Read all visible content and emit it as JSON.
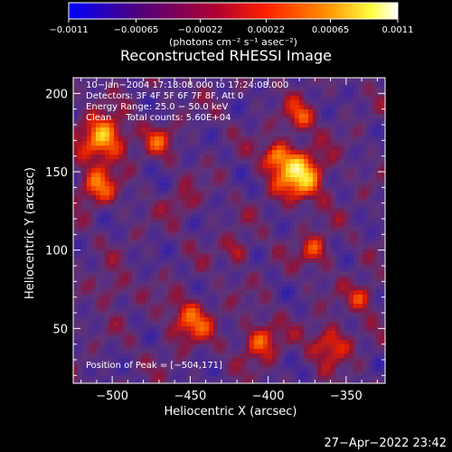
{
  "colorbar": {
    "ticks": [
      {
        "value": -0.0011,
        "label": "−0.0011"
      },
      {
        "value": -0.00065,
        "label": "−0.00065"
      },
      {
        "value": -0.00022,
        "label": "−0.00022"
      },
      {
        "value": 0.00022,
        "label": "0.00022"
      },
      {
        "value": 0.00065,
        "label": "0.00065"
      },
      {
        "value": 0.0011,
        "label": "0.0011"
      }
    ],
    "range": [
      -0.0011,
      0.0011
    ],
    "unit_label": "(photons cm⁻² s⁻¹ asec⁻²)",
    "colors": [
      "#0000ff",
      "#4b0082",
      "#b00030",
      "#ff2000",
      "#ff8c00",
      "#ffff40",
      "#ffffff"
    ]
  },
  "chart_data": {
    "type": "heatmap",
    "title": "Reconstructed RHESSI Image",
    "xlabel": "Heliocentric X (arcsec)",
    "ylabel": "Heliocentric Y (arcsec)",
    "xlim": [
      -525,
      -325
    ],
    "ylim": [
      15,
      210
    ],
    "xticks": [
      {
        "value": -500,
        "label": "−500"
      },
      {
        "value": -450,
        "label": "−450"
      },
      {
        "value": -400,
        "label": "−400"
      },
      {
        "value": -350,
        "label": "−350"
      }
    ],
    "yticks": [
      {
        "value": 50,
        "label": "50"
      },
      {
        "value": 100,
        "label": "100"
      },
      {
        "value": 150,
        "label": "150"
      },
      {
        "value": 200,
        "label": "200"
      }
    ],
    "annotations": [
      "10−Jan−2004 17:18:08.000 to 17:24:08.000",
      "Detectors: 3F 4F 5F 6F 7F 8F, Att 0",
      "Energy Range: 25.0 − 50.0 keV",
      "Clean     Total counts: 5.60E+04"
    ],
    "peak_label": "Position of Peak = [−504,171]",
    "grid": false
  },
  "timestamp": "27−Apr−2022 23:42"
}
